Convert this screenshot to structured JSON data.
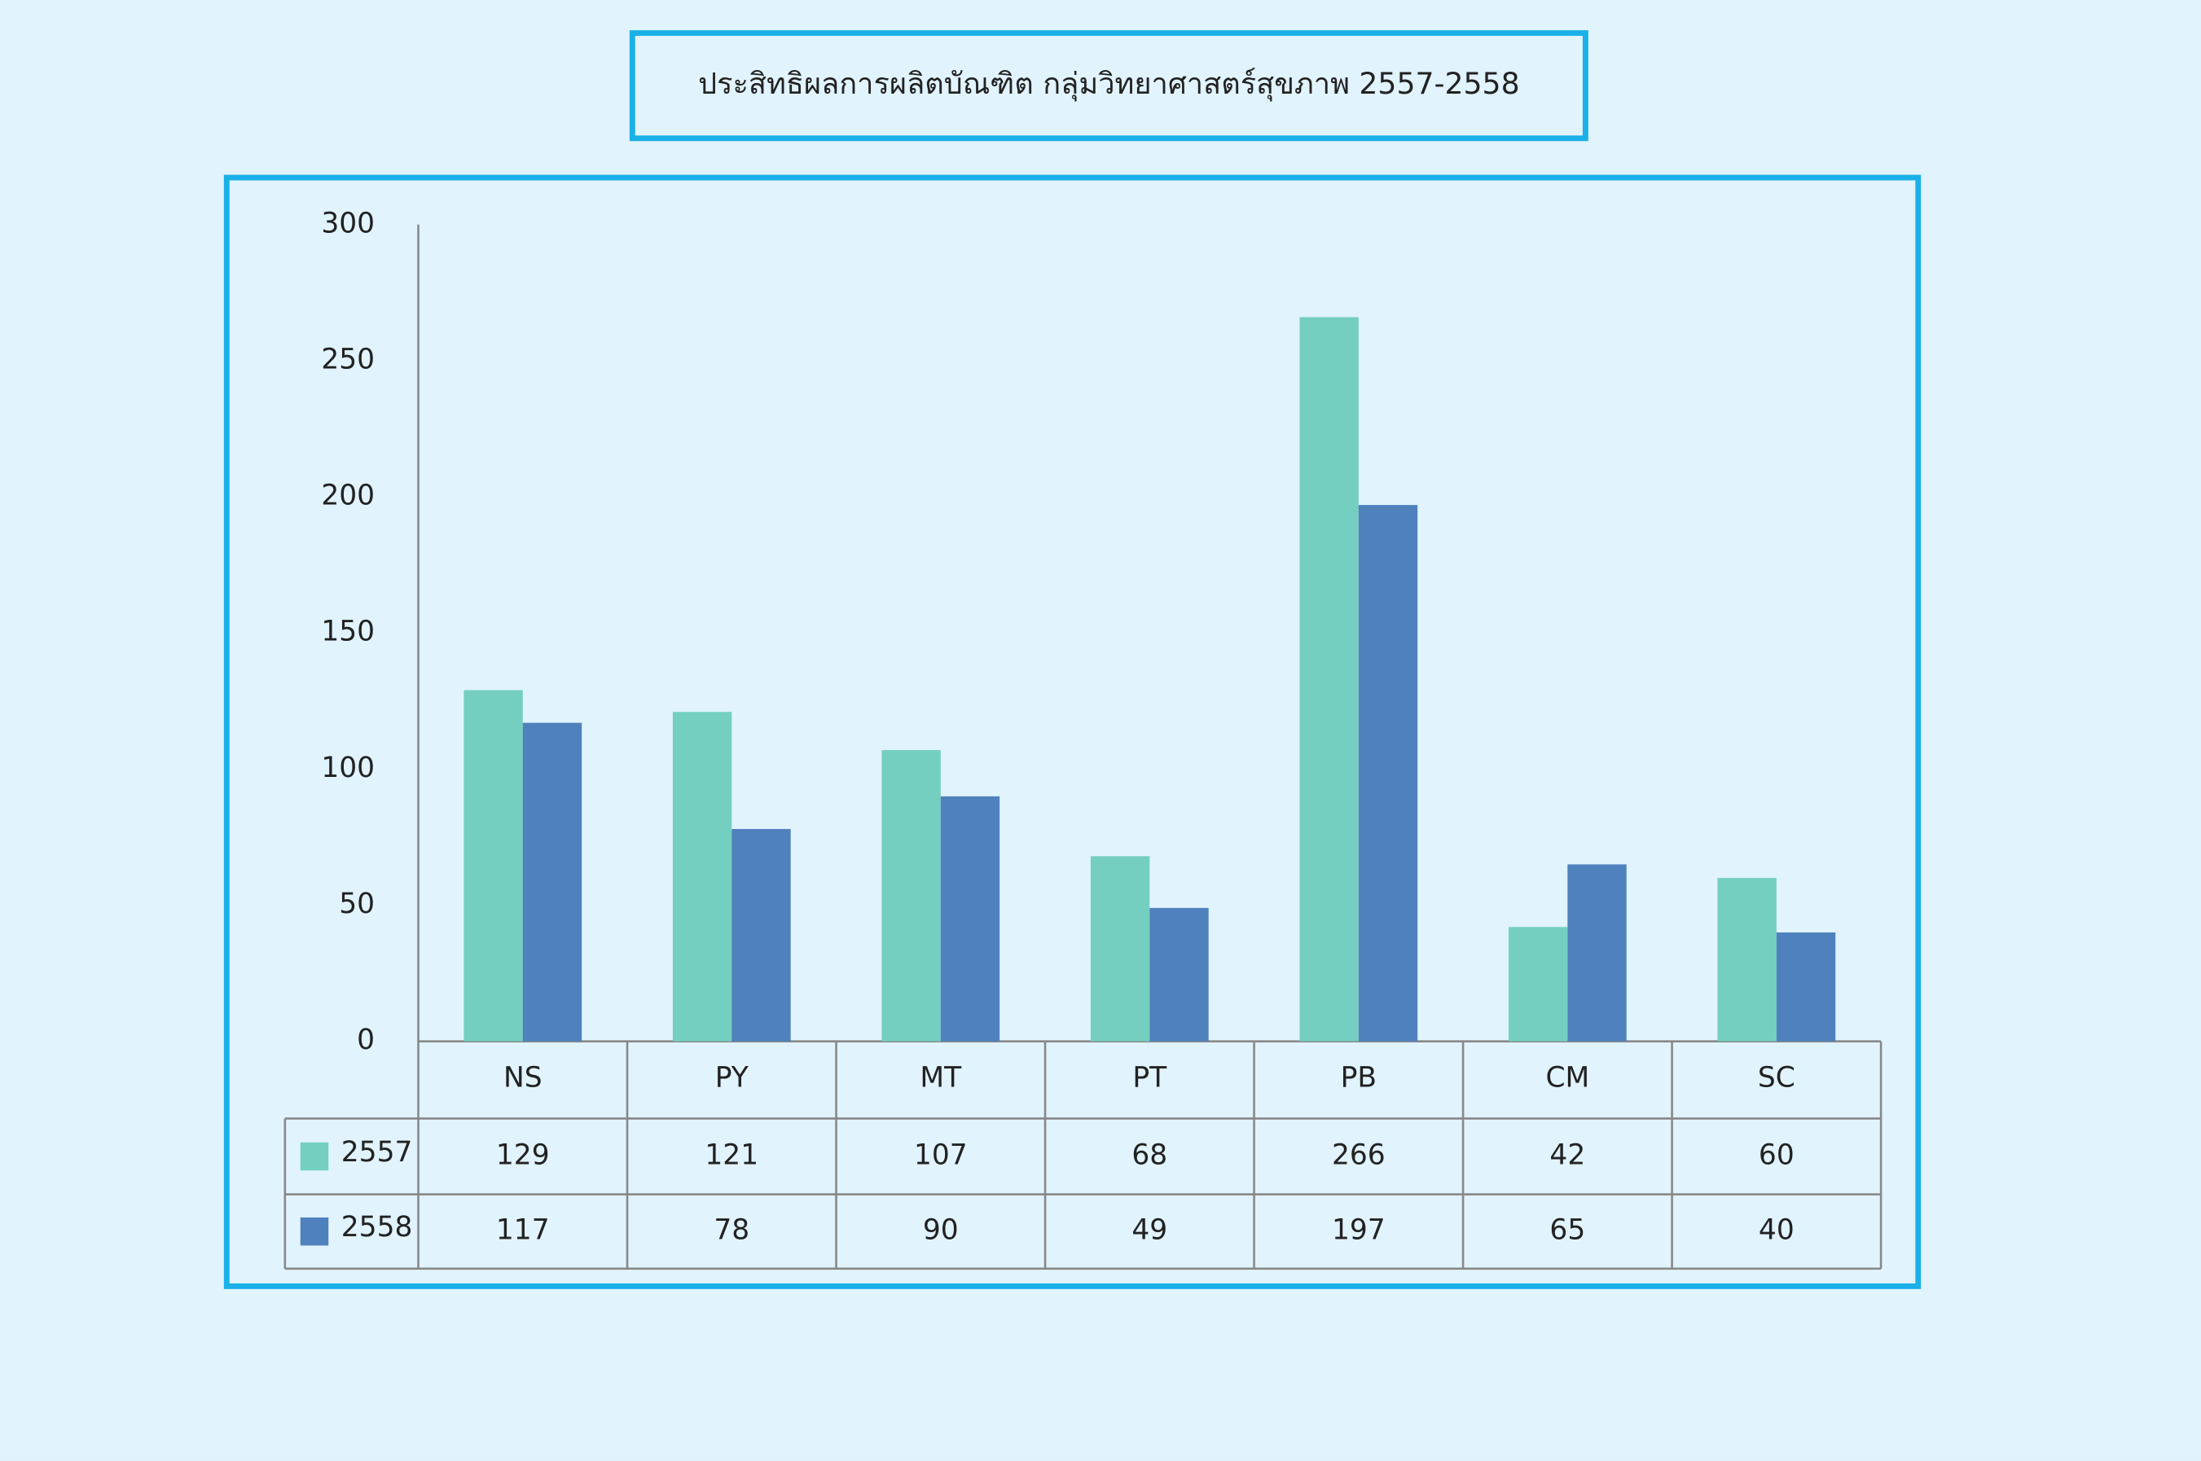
{
  "chart_data": {
    "type": "bar",
    "title": "ประสิทธิผลการผลิตบัณฑิต  กลุ่มวิทยาศาสตร์สุขภาพ  2557-2558",
    "categories": [
      "NS",
      "PY",
      "MT",
      "PT",
      "PB",
      "CM",
      "SC"
    ],
    "series": [
      {
        "name": "2557",
        "color": "#74cfc0",
        "values": [
          129,
          121,
          107,
          68,
          266,
          42,
          60
        ]
      },
      {
        "name": "2558",
        "color": "#4f81bd",
        "values": [
          117,
          78,
          90,
          49,
          197,
          65,
          40
        ]
      }
    ],
    "ylim": [
      0,
      300
    ],
    "yticks": [
      0,
      50,
      100,
      150,
      200,
      250,
      300
    ],
    "grid": false
  }
}
